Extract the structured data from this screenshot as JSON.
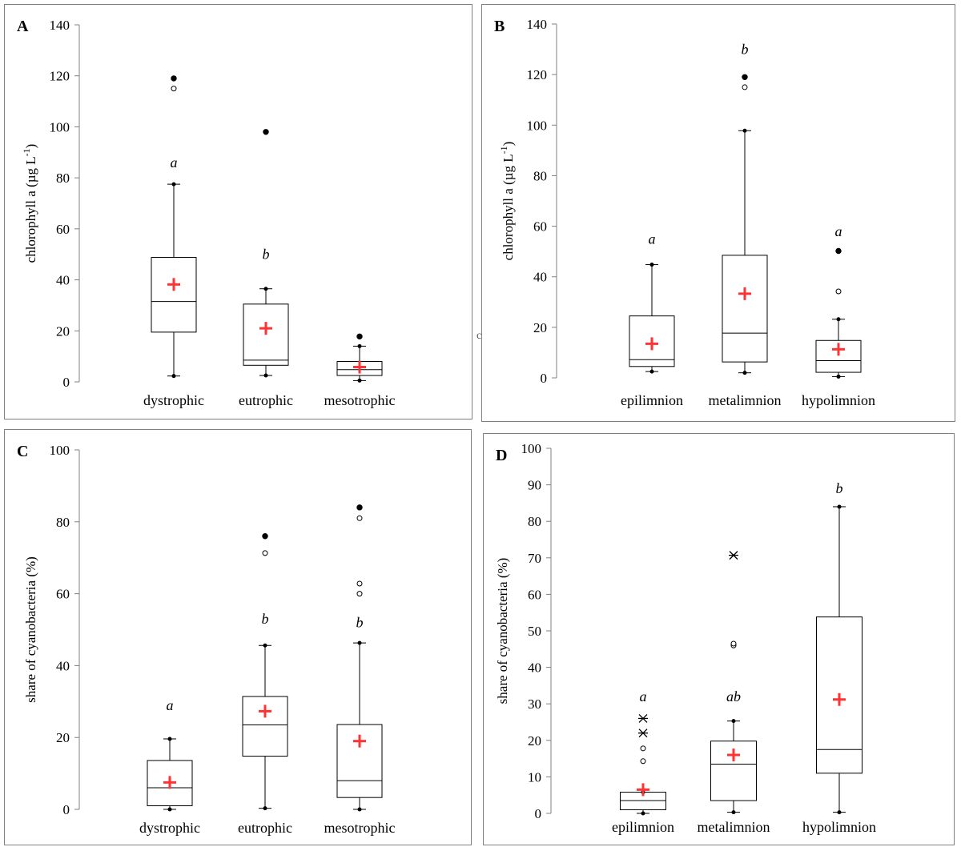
{
  "chart_data": [
    {
      "type": "box",
      "panel": "A",
      "ylabel": "chlorophyll a (µg L⁻¹)",
      "ylabel_main": "chlorophyll a (µg L",
      "ylabel_sup": "-1",
      "ylabel_close": ")",
      "ylim": [
        0,
        140
      ],
      "yticks": [
        "0",
        "20",
        "40",
        "60",
        "80",
        "100",
        "120",
        "140"
      ],
      "categories": [
        "dystrophic",
        "eutrophic",
        "mesotrophic"
      ],
      "boxes": [
        {
          "min": 2.3,
          "q1": 19.5,
          "median": 31.5,
          "q3": 48.8,
          "max": 77.5,
          "mean": 38.2,
          "letter": "a",
          "letter_y": 86,
          "outliers_open": [
            115
          ],
          "outliers_filled": [
            119
          ]
        },
        {
          "min": 2.5,
          "q1": 6.5,
          "median": 8.5,
          "q3": 30.5,
          "max": 36.5,
          "mean": 21.0,
          "letter": "b",
          "letter_y": 50,
          "outliers_open": [],
          "outliers_filled": [
            98
          ]
        },
        {
          "min": 0.5,
          "q1": 2.5,
          "median": 4.8,
          "q3": 8.0,
          "max": 14.0,
          "mean": 5.8,
          "letter": "",
          "letter_y": 0,
          "outliers_open": [],
          "outliers_filled": [
            17.8
          ]
        }
      ]
    },
    {
      "type": "box",
      "panel": "B",
      "ylabel": "chlorophyll a (µg L⁻¹)",
      "ylabel_main": "chlorophyll a (µg L",
      "ylabel_sup": "-1",
      "ylabel_close": ")",
      "ylim": [
        0,
        140
      ],
      "yticks": [
        "0",
        "20",
        "40",
        "60",
        "80",
        "100",
        "120",
        "140"
      ],
      "categories": [
        "epilimnion",
        "metalimnion",
        "hypolimnion"
      ],
      "boxes": [
        {
          "min": 2.5,
          "q1": 4.5,
          "median": 7.2,
          "q3": 24.5,
          "max": 44.8,
          "mean": 13.5,
          "letter": "a",
          "letter_y": 55,
          "outliers_open": [],
          "outliers_filled": []
        },
        {
          "min": 2.0,
          "q1": 6.3,
          "median": 17.7,
          "q3": 48.5,
          "max": 97.8,
          "mean": 33.3,
          "letter": "b",
          "letter_y": 130,
          "outliers_open": [
            115
          ],
          "outliers_filled": [
            119
          ]
        },
        {
          "min": 0.5,
          "q1": 2.2,
          "median": 6.8,
          "q3": 14.8,
          "max": 23.2,
          "mean": 11.3,
          "letter": "a",
          "letter_y": 58,
          "outliers_open": [
            34.2
          ],
          "outliers_filled": [
            50.2
          ]
        }
      ]
    },
    {
      "type": "box",
      "panel": "C",
      "ylabel": "share of cyanobacteria (%)",
      "ylim": [
        0,
        100
      ],
      "yticks": [
        "0",
        "20",
        "40",
        "60",
        "80",
        "100"
      ],
      "categories": [
        "dystrophic",
        "eutrophic",
        "mesotrophic"
      ],
      "boxes": [
        {
          "min": 0.0,
          "q1": 1.0,
          "median": 6.0,
          "q3": 13.6,
          "max": 19.6,
          "mean": 7.5,
          "letter": "a",
          "letter_y": 29,
          "outliers_open": [],
          "outliers_filled": []
        },
        {
          "min": 0.3,
          "q1": 14.8,
          "median": 23.5,
          "q3": 31.4,
          "max": 45.6,
          "mean": 27.3,
          "letter": "b",
          "letter_y": 53,
          "outliers_open": [
            71.3
          ],
          "outliers_filled": [
            76
          ]
        },
        {
          "min": 0.0,
          "q1": 3.3,
          "median": 8.0,
          "q3": 23.6,
          "max": 46.3,
          "mean": 19.0,
          "letter": "b",
          "letter_y": 52,
          "outliers_open": [
            60,
            62.8,
            81
          ],
          "outliers_filled": [
            84
          ]
        }
      ]
    },
    {
      "type": "box",
      "panel": "D",
      "ylabel": "share of cyanobacteria (%)",
      "ylim": [
        0,
        100
      ],
      "yticks": [
        "0",
        "10",
        "20",
        "30",
        "40",
        "50",
        "60",
        "70",
        "80",
        "90",
        "100"
      ],
      "categories": [
        "epilimnion",
        "metalimnion",
        "hypolimnion"
      ],
      "boxes": [
        {
          "min": 0.0,
          "q1": 1.0,
          "median": 3.5,
          "q3": 5.8,
          "max": 5.8,
          "mean": 6.5,
          "letter": "a",
          "letter_y": 32,
          "outliers_open": [
            14.3,
            17.8
          ],
          "outliers_filled": [],
          "outliers_star": [
            22,
            26
          ]
        },
        {
          "min": 0.3,
          "q1": 3.5,
          "median": 13.5,
          "q3": 19.8,
          "max": 25.3,
          "mean": 16.0,
          "letter": "ab",
          "letter_y": 32,
          "outliers_open": [
            46,
            46.5
          ],
          "outliers_filled": [],
          "outliers_star": [
            70.7
          ]
        },
        {
          "min": 0.3,
          "q1": 11.0,
          "median": 17.5,
          "q3": 53.8,
          "max": 84.0,
          "mean": 31.2,
          "letter": "b",
          "letter_y": 89,
          "outliers_open": [],
          "outliers_filled": [],
          "outliers_star": []
        }
      ]
    }
  ],
  "colors": {
    "mean_marker": "#ff3333",
    "axis": "#808080",
    "panel_border": "#808080"
  },
  "stray_mark": "c"
}
